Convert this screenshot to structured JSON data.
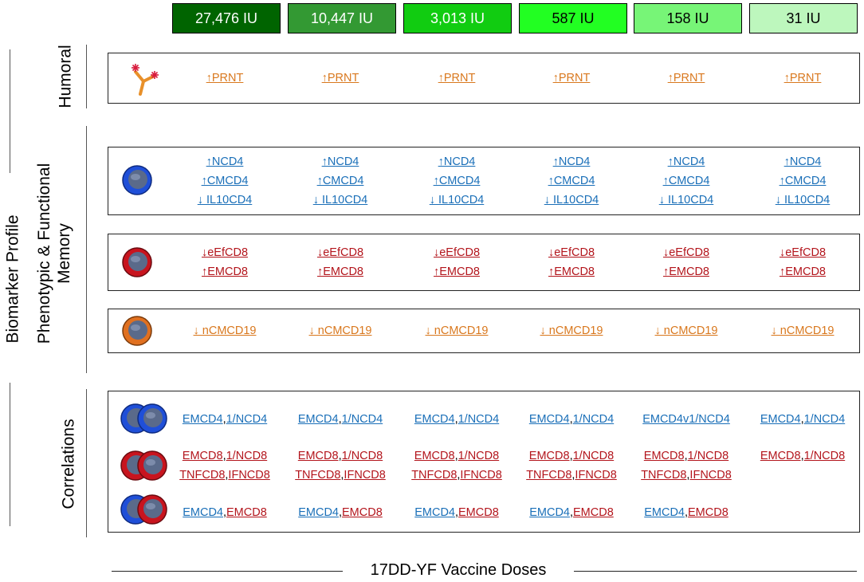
{
  "doses": [
    {
      "label": "27,476 IU",
      "bg": "#006400",
      "fg": "#ffffff"
    },
    {
      "label": "10,447 IU",
      "bg": "#339933",
      "fg": "#ffffff"
    },
    {
      "label": "3,013 IU",
      "bg": "#11cc11",
      "fg": "#ffffff"
    },
    {
      "label": "587 IU",
      "bg": "#22ff22",
      "fg": "#000000"
    },
    {
      "label": "158 IU",
      "bg": "#77f577",
      "fg": "#000000"
    },
    {
      "label": "31 IU",
      "bg": "#bdf7bd",
      "fg": "#000000"
    }
  ],
  "labels": {
    "biomarker_profile": "Biomarker Profile",
    "humoral": "Humoral",
    "phenotypic_line1": "Phenotypic & Functional",
    "phenotypic_line2": "Memory",
    "correlations": "Correlations",
    "x_axis": "17DD-YF Vaccine Doses"
  },
  "colors": {
    "blue": "#1a6fb8",
    "red": "#b3151c",
    "orange": "#d9781e"
  },
  "icons": {
    "humoral": "antibody-icon",
    "cd4": "blue-cell-icon",
    "cd8": "red-cell-icon",
    "cd19": "orange-cell-icon",
    "corr_cd4": "double-blue-cell-icon",
    "corr_cd8": "double-red-cell-icon",
    "corr_mixed": "blue-red-cell-icon"
  },
  "humoral_row": [
    [
      "↑PRNT"
    ],
    [
      "↑PRNT"
    ],
    [
      "↑PRNT"
    ],
    [
      "↑PRNT"
    ],
    [
      "↑PRNT"
    ],
    [
      "↑PRNT"
    ]
  ],
  "cd4_row": [
    [
      "↑NCD4",
      "↑CMCD4",
      "↓ IL10CD4"
    ],
    [
      "↑NCD4",
      "↑CMCD4",
      "↓ IL10CD4"
    ],
    [
      "↑NCD4",
      "↑CMCD4",
      "↓ IL10CD4"
    ],
    [
      "↑NCD4",
      "↑CMCD4",
      "↓ IL10CD4"
    ],
    [
      "↑NCD4",
      "↑CMCD4",
      "↓ IL10CD4"
    ],
    [
      "↑NCD4",
      "↑CMCD4",
      "↓ IL10CD4"
    ]
  ],
  "cd8_row": [
    [
      "↓eEfCD8",
      "↑EMCD8"
    ],
    [
      "↓eEfCD8",
      "↑EMCD8"
    ],
    [
      "↓eEfCD8",
      "↑EMCD8"
    ],
    [
      "↓eEfCD8",
      "↑EMCD8"
    ],
    [
      "↓eEfCD8",
      "↑EMCD8"
    ],
    [
      "↓eEfCD8",
      "↑EMCD8"
    ]
  ],
  "cd19_row": [
    "↓ nCMCD19",
    "↓ nCMCD19",
    "↓ nCMCD19",
    "↓ nCMCD19",
    "↓ nCMCD19",
    "↓ nCMCD19"
  ],
  "corr_cd4_row": [
    [
      "EMCD4",
      "1/NCD4"
    ],
    [
      "EMCD4",
      "1/NCD4"
    ],
    [
      "EMCD4",
      "1/NCD4"
    ],
    [
      "EMCD4",
      "1/NCD4"
    ],
    [
      "EMCD4v1/NCD4"
    ],
    [
      "EMCD4",
      "1/NCD4"
    ]
  ],
  "corr_cd8_row": [
    [
      [
        "EMCD8",
        "1/NCD8"
      ],
      [
        "TNFCD8",
        "IFNCD8"
      ]
    ],
    [
      [
        "EMCD8",
        "1/NCD8"
      ],
      [
        "TNFCD8",
        "IFNCD8"
      ]
    ],
    [
      [
        "EMCD8",
        "1/NCD8"
      ],
      [
        "TNFCD8",
        "IFNCD8"
      ]
    ],
    [
      [
        "EMCD8",
        "1/NCD8"
      ],
      [
        "TNFCD8",
        "IFNCD8"
      ]
    ],
    [
      [
        "EMCD8",
        "1/NCD8"
      ],
      [
        "TNFCD8",
        "IFNCD8"
      ]
    ],
    [
      [
        "EMCD8",
        "1/NCD8"
      ]
    ]
  ],
  "corr_mixed_row": [
    [
      "EMCD4",
      "EMCD8"
    ],
    [
      "EMCD4",
      "EMCD8"
    ],
    [
      "EMCD4",
      "EMCD8"
    ],
    [
      "EMCD4",
      "EMCD8"
    ],
    [
      "EMCD4",
      "EMCD8"
    ]
  ]
}
